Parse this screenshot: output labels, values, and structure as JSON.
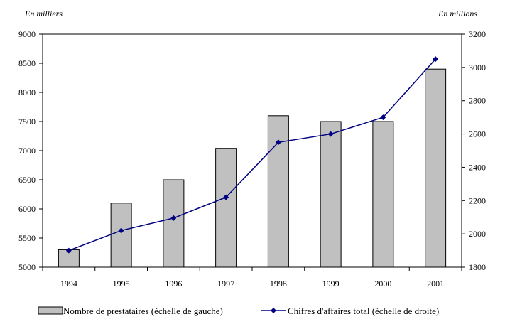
{
  "chart_data": {
    "type": "bar",
    "categories": [
      "1994",
      "1995",
      "1996",
      "1997",
      "1998",
      "1999",
      "2000",
      "2001"
    ],
    "series": [
      {
        "name": "Nombre de prestataires (échelle de gauche)",
        "type": "bar",
        "axis": "left",
        "values": [
          5300,
          6100,
          6500,
          7040,
          7600,
          7500,
          7500,
          8400
        ]
      },
      {
        "name": "Chifres d'affaires total (échelle de droite)",
        "type": "line",
        "axis": "right",
        "values": [
          1900,
          2020,
          2095,
          2220,
          2550,
          2600,
          2700,
          3050
        ]
      }
    ],
    "y_left": {
      "unit_label": "En milliers",
      "ticks": [
        "5000",
        "5500",
        "6000",
        "6500",
        "7000",
        "7500",
        "8000",
        "8500",
        "9000"
      ],
      "ylim": [
        5000,
        9000
      ]
    },
    "y_right": {
      "unit_label": "En millions",
      "ticks": [
        "1800",
        "2000",
        "2200",
        "2400",
        "2600",
        "2800",
        "3000",
        "3200"
      ],
      "ylim": [
        1800,
        3200
      ]
    },
    "colors": {
      "bar_fill": "#c0c0c0",
      "bar_stroke": "#000000",
      "line": "#000080"
    },
    "grid": false,
    "legend_position": "bottom"
  }
}
